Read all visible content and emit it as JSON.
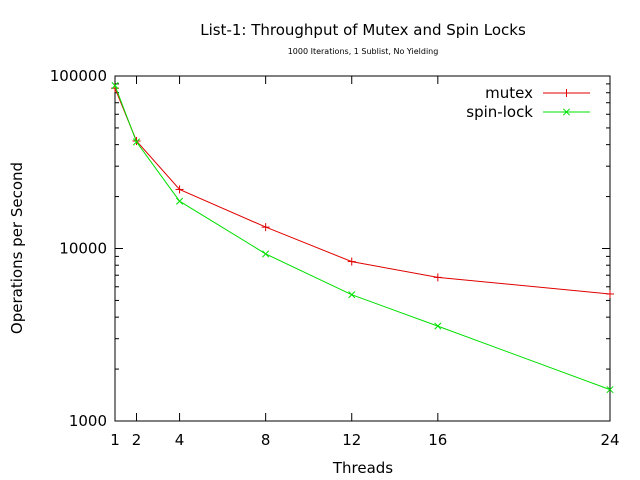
{
  "chart_data": {
    "type": "line",
    "title": "List-1: Throughput of Mutex and Spin Locks",
    "subtitle": "1000 Iterations, 1 Sublist, No Yielding",
    "xlabel": "Threads",
    "ylabel": "Operations per Second",
    "x_scale": "linear",
    "y_scale": "log",
    "xlim": [
      1,
      24
    ],
    "ylim": [
      1000,
      100000
    ],
    "x_ticks": [
      1,
      2,
      4,
      8,
      12,
      16,
      24
    ],
    "x_tick_labels": [
      "1",
      "2",
      "4",
      "8",
      "12",
      "16",
      "24"
    ],
    "y_ticks": [
      1000,
      10000,
      100000
    ],
    "y_tick_labels": [
      "1000",
      "10000",
      "100000"
    ],
    "legend_position": "top-right",
    "grid": false,
    "series": [
      {
        "name": "mutex",
        "color": "#e00000",
        "marker": "plus",
        "x": [
          1,
          2,
          4,
          8,
          12,
          16,
          24
        ],
        "values": [
          85000,
          42000,
          22000,
          13300,
          8400,
          6800,
          5450
        ]
      },
      {
        "name": "spin-lock",
        "color": "#00e000",
        "marker": "cross",
        "x": [
          1,
          2,
          4,
          8,
          12,
          16,
          24
        ],
        "values": [
          88000,
          41500,
          18800,
          9300,
          5400,
          3550,
          1520
        ]
      }
    ]
  }
}
